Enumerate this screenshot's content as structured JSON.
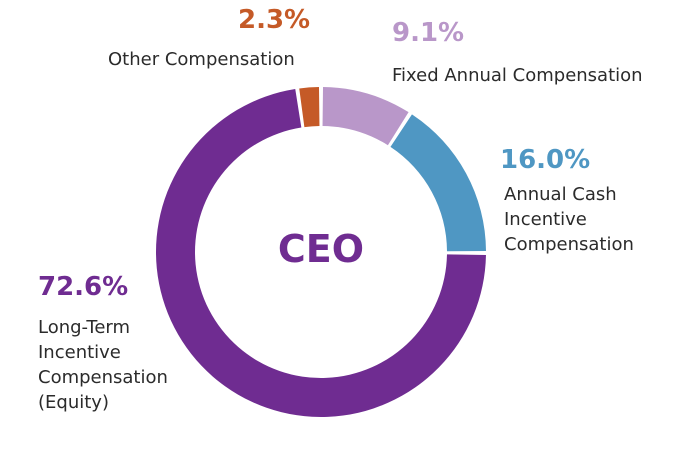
{
  "chart_data": {
    "type": "pie",
    "style": "donut",
    "center_label": "CEO",
    "slices": [
      {
        "name": "Fixed Annual Compensation",
        "label_lines": [
          "Fixed Annual Compensation"
        ],
        "value": 9.1,
        "value_label": "9.1%",
        "color": "#b997c9"
      },
      {
        "name": "Annual Cash Incentive Compensation",
        "label_lines": [
          "Annual Cash",
          "Incentive",
          "Compensation"
        ],
        "value": 16.0,
        "value_label": "16.0%",
        "color": "#4f97c3"
      },
      {
        "name": "Long-Term Incentive Compensation (Equity)",
        "label_lines": [
          "Long-Term",
          "Incentive",
          "Compensation",
          "(Equity)"
        ],
        "value": 72.6,
        "value_label": "72.6%",
        "color": "#6f2c91"
      },
      {
        "name": "Other Compensation",
        "label_lines": [
          "Other Compensation"
        ],
        "value": 2.3,
        "value_label": "2.3%",
        "color": "#c55a27"
      }
    ]
  }
}
